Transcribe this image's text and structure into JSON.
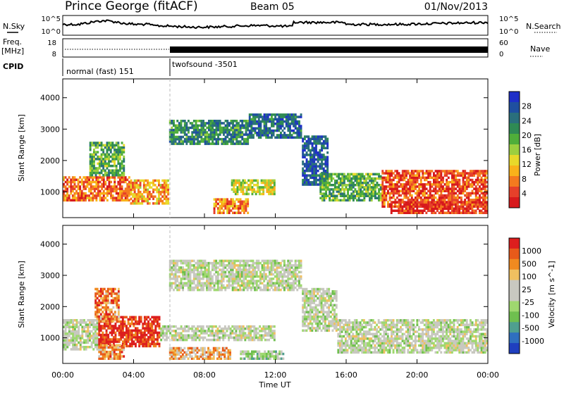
{
  "header": {
    "site": "Prince George (fitACF)",
    "beam": "Beam 05",
    "date": "01/Nov/2013"
  },
  "strips": {
    "nsky_label": "N.Sky",
    "nsearch_label": "N.Search",
    "freq_label": "Freq.",
    "freq_unit": "[MHz]",
    "nave_label": "Nave",
    "cpid_label": "CPID",
    "nsky_ticks": [
      "10^5",
      "10^0"
    ],
    "nsearch_ticks": [
      "10^5",
      "10^0"
    ],
    "freq_ticks": [
      "18",
      "8"
    ],
    "nave_ticks": [
      "60",
      "0"
    ],
    "cpid_segments": [
      {
        "label": "normal (fast) 151",
        "start": 0.0,
        "end": 6.0
      },
      {
        "label": "twofsound -3501",
        "start": 6.0,
        "end": 24.0
      }
    ]
  },
  "chart_data": [
    {
      "type": "heatmap",
      "title": "",
      "xlabel": "Time UT",
      "ylabel": "Slant Range [km]",
      "xlim": [
        0,
        24
      ],
      "ylim": [
        180,
        4600
      ],
      "x_ticks": [
        "00:00",
        "04:00",
        "08:00",
        "12:00",
        "16:00",
        "20:00",
        "00:00"
      ],
      "y_ticks": [
        "1000",
        "2000",
        "3000",
        "4000"
      ],
      "colorbar": {
        "label": "Power [dB]",
        "ticks": [
          "28",
          "24",
          "20",
          "16",
          "12",
          "8",
          "4"
        ],
        "colors": [
          "#d7191c",
          "#e6402a",
          "#f47a1f",
          "#f9b21a",
          "#e8d92a",
          "#9ccf3f",
          "#4fae3a",
          "#2f8a54",
          "#2a6f7c",
          "#1f4fa0",
          "#1e2fc8"
        ]
      },
      "regions": [
        {
          "t0": 0.0,
          "t1": 3.8,
          "r0": 700,
          "r1": 1500,
          "level": 0.2
        },
        {
          "t0": 3.8,
          "t1": 6.0,
          "r0": 600,
          "r1": 1400,
          "level": 0.3
        },
        {
          "t0": 1.5,
          "t1": 3.5,
          "r0": 1500,
          "r1": 2600,
          "level": 0.6
        },
        {
          "t0": 6.0,
          "t1": 10.5,
          "r0": 2500,
          "r1": 3300,
          "level": 0.7
        },
        {
          "t0": 10.5,
          "t1": 13.5,
          "r0": 2700,
          "r1": 3500,
          "level": 0.8
        },
        {
          "t0": 13.5,
          "t1": 15.0,
          "r0": 1200,
          "r1": 2800,
          "level": 0.85
        },
        {
          "t0": 8.5,
          "t1": 10.5,
          "r0": 300,
          "r1": 800,
          "level": 0.25
        },
        {
          "t0": 9.5,
          "t1": 12.0,
          "r0": 900,
          "r1": 1400,
          "level": 0.45
        },
        {
          "t0": 14.5,
          "t1": 18.0,
          "r0": 700,
          "r1": 1600,
          "level": 0.6
        },
        {
          "t0": 18.0,
          "t1": 24.0,
          "r0": 500,
          "r1": 1700,
          "level": 0.15
        },
        {
          "t0": 18.5,
          "t1": 24.0,
          "r0": 300,
          "r1": 700,
          "level": 0.1
        }
      ]
    },
    {
      "type": "heatmap",
      "title": "",
      "xlabel": "Time UT",
      "ylabel": "Slant Range [km]",
      "xlim": [
        0,
        24
      ],
      "ylim": [
        180,
        4600
      ],
      "x_ticks": [
        "00:00",
        "04:00",
        "08:00",
        "12:00",
        "16:00",
        "20:00",
        "00:00"
      ],
      "y_ticks": [
        "1000",
        "2000",
        "3000",
        "4000"
      ],
      "colorbar": {
        "label": "Velocity [m s^-1]",
        "ticks": [
          "1000",
          "500",
          "100",
          "25",
          "-25",
          "-100",
          "-500",
          "-1000"
        ],
        "colors": [
          "#1f3fbf",
          "#2f6fbf",
          "#4f9f8f",
          "#6fbf4f",
          "#9fd86f",
          "#c8c8c0",
          "#c8c8c0",
          "#f0c060",
          "#f08a20",
          "#e85a1a",
          "#dd1e1e"
        ]
      },
      "regions": [
        {
          "t0": 0.0,
          "t1": 2.0,
          "r0": 600,
          "r1": 1600,
          "level": 0.5
        },
        {
          "t0": 2.0,
          "t1": 5.5,
          "r0": 700,
          "r1": 1700,
          "level": 0.95
        },
        {
          "t0": 1.8,
          "t1": 3.2,
          "r0": 1500,
          "r1": 2600,
          "level": 0.8
        },
        {
          "t0": 2.0,
          "t1": 3.5,
          "r0": 300,
          "r1": 800,
          "level": 0.75
        },
        {
          "t0": 6.0,
          "t1": 13.5,
          "r0": 2500,
          "r1": 3500,
          "level": 0.5
        },
        {
          "t0": 5.5,
          "t1": 12.0,
          "r0": 900,
          "r1": 1400,
          "level": 0.5
        },
        {
          "t0": 6.0,
          "t1": 9.5,
          "r0": 300,
          "r1": 700,
          "level": 0.7
        },
        {
          "t0": 10.0,
          "t1": 12.5,
          "r0": 300,
          "r1": 600,
          "level": 0.4
        },
        {
          "t0": 13.5,
          "t1": 15.5,
          "r0": 1200,
          "r1": 2600,
          "level": 0.5
        },
        {
          "t0": 15.5,
          "t1": 24.0,
          "r0": 500,
          "r1": 1600,
          "level": 0.5
        }
      ]
    }
  ]
}
